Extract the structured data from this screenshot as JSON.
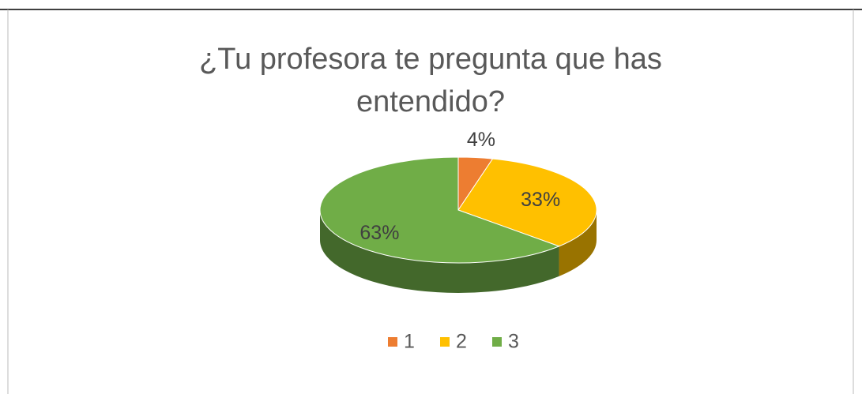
{
  "chart_data": {
    "type": "pie",
    "title": "¿Tu profesora te pregunta que has entendido?",
    "categories": [
      "1",
      "2",
      "3"
    ],
    "values": [
      4,
      33,
      63
    ],
    "value_labels": [
      "4%",
      "33%",
      "63%"
    ],
    "colors": [
      "#ED7D31",
      "#FFC000",
      "#70AD47"
    ],
    "legend": "bottom"
  }
}
